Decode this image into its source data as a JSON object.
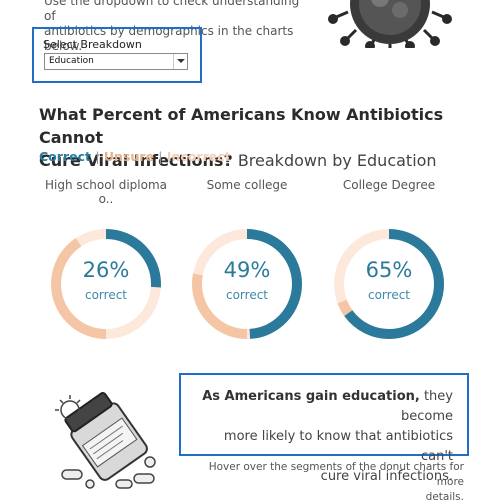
{
  "intro": {
    "line1": "Use the dropdown to check understanding of",
    "line2": "antibiotics by demographics in the charts below."
  },
  "breakdown": {
    "label": "Select Breakdown",
    "value": "Education"
  },
  "title": {
    "line1": "What Percent of Americans Know Antibiotics Cannot",
    "line2_bold": "Cure Viral Infections?",
    "line2_rest": " Breakdown by Education"
  },
  "legend": {
    "correct": "Correct",
    "unsure": "Unsure",
    "incorrect": "Incorrect",
    "separator": "|"
  },
  "colors": {
    "correct": "#2b7a9b",
    "unsure": "#f5c6a5",
    "incorrect": "#fde9dc",
    "accent_border": "#1f6fc5"
  },
  "chart_data": {
    "type": "pie",
    "donuts": [
      {
        "label": "High school diploma o..",
        "pct_text": "26%",
        "sub": "correct",
        "correct": 26
      },
      {
        "label": "Some college",
        "pct_text": "49%",
        "sub": "correct",
        "correct": 49
      },
      {
        "label": "College Degree",
        "pct_text": "65%",
        "sub": "correct",
        "correct": 65
      }
    ]
  },
  "callout": {
    "bold": "As Americans gain education,",
    "line1_rest": " they become",
    "line2": "more likely to know that antibiotics can't",
    "line3": "cure viral infections."
  },
  "hover_note": {
    "line1": "Hover over the segments of the donut charts for more",
    "line2": "details."
  }
}
